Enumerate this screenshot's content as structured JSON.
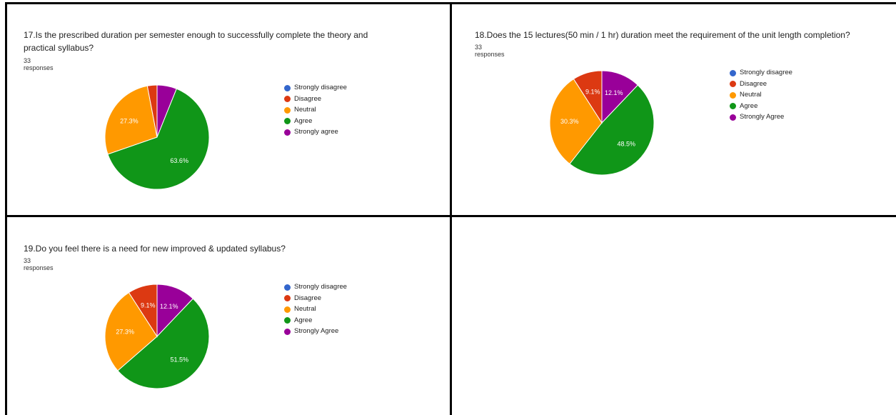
{
  "panels": [
    {
      "question": "17.Is the prescribed duration per semester enough to successfully complete the theory and practical syllabus?",
      "question_lines": [
        "17.Is the prescribed duration per semester enough to successfully complete the theory and",
        "practical syllabus?"
      ],
      "responses": "33 responses",
      "chart_data": {
        "type": "pie",
        "title": "17.Is the prescribed duration per semester enough to successfully complete the theory and practical syllabus?",
        "categories": [
          "Strongly disagree",
          "Disagree",
          "Neutral",
          "Agree",
          "Strongly agree"
        ],
        "values": [
          0,
          3.0,
          27.3,
          63.6,
          6.1
        ],
        "unit": "%",
        "data_labels": [
          "",
          "",
          "27.3%",
          "63.6%",
          ""
        ],
        "colors": [
          "#3366cc",
          "#dc3912",
          "#ff9900",
          "#109618",
          "#990099"
        ],
        "legend_position": "right"
      }
    },
    {
      "question": "18.Does the 15 lectures(50 min / 1 hr) duration meet the requirement of the unit length completion?",
      "question_lines": [
        "18.Does the 15 lectures(50 min / 1 hr) duration meet the requirement of the unit length completion?"
      ],
      "responses": "33 responses",
      "chart_data": {
        "type": "pie",
        "title": "18.Does the 15 lectures(50 min / 1 hr) duration meet the requirement of the unit length completion?",
        "categories": [
          "Strongly disagree",
          "Disagree",
          "Neutral",
          "Agree",
          "Strongly Agree"
        ],
        "values": [
          0,
          9.1,
          30.3,
          48.5,
          12.1
        ],
        "unit": "%",
        "data_labels": [
          "",
          "9.1%",
          "30.3%",
          "48.5%",
          "12.1%"
        ],
        "colors": [
          "#3366cc",
          "#dc3912",
          "#ff9900",
          "#109618",
          "#990099"
        ],
        "legend_position": "right"
      }
    },
    {
      "question": "19.Do you feel there is a need for new improved & updated syllabus?",
      "question_lines": [
        "19.Do you feel there is a need for new improved & updated syllabus?"
      ],
      "responses": "33 responses",
      "chart_data": {
        "type": "pie",
        "title": "19.Do you feel there is a need for new improved & updated syllabus?",
        "categories": [
          "Strongly disagree",
          "Disagree",
          "Neutral",
          "Agree",
          "Strongly Agree"
        ],
        "values": [
          0,
          9.1,
          27.3,
          51.5,
          12.1
        ],
        "unit": "%",
        "data_labels": [
          "",
          "9.1%",
          "27.3%",
          "51.5%",
          "12.1%"
        ],
        "colors": [
          "#3366cc",
          "#dc3912",
          "#ff9900",
          "#109618",
          "#990099"
        ],
        "legend_position": "right"
      }
    }
  ]
}
